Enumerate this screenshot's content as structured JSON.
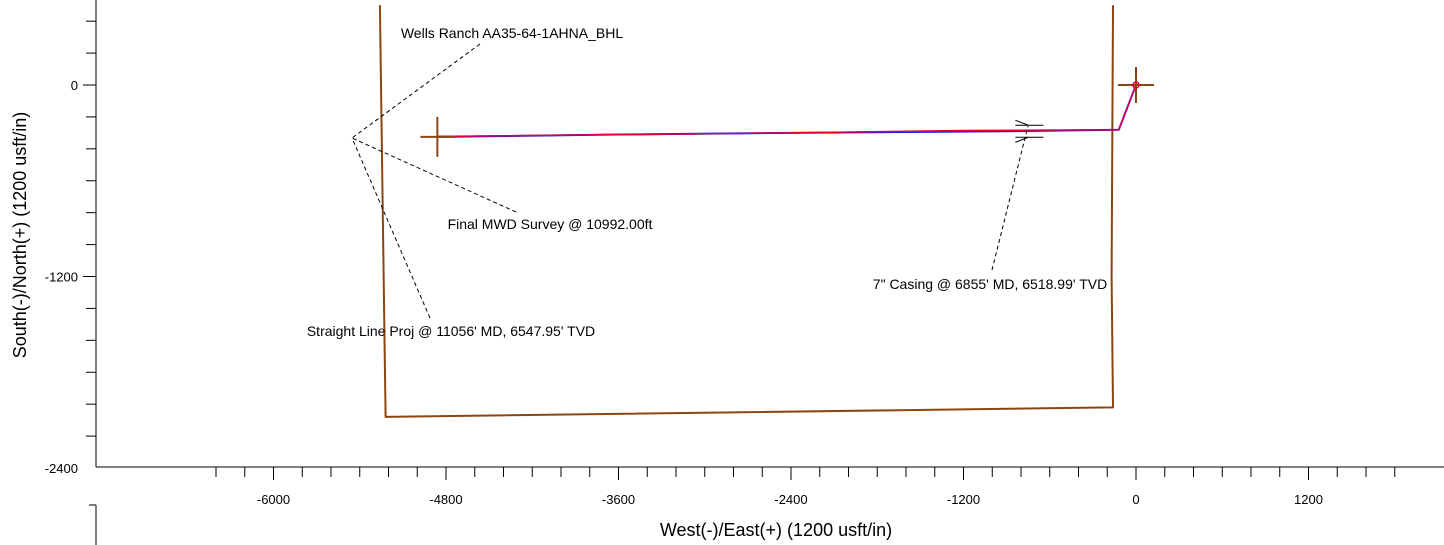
{
  "chart_data": {
    "type": "line",
    "title": "",
    "xlabel": "West(-)/East(+) (1200 usft/in)",
    "ylabel": "South(-)/North(+) (1200 usft/in)",
    "xlim": [
      -6400,
      1900
    ],
    "ylim": [
      -2400,
      500
    ],
    "x_ticks": [
      -6000,
      -4800,
      -3600,
      -2400,
      -1200,
      0,
      1200
    ],
    "y_ticks": [
      0,
      -1200,
      -2400
    ],
    "grid": false,
    "legend": "none",
    "series": [
      {
        "color": "#8B4513",
        "points": [
          [
            -5260,
            500
          ],
          [
            -5220,
            -2080
          ],
          [
            -160,
            -2020
          ],
          [
            -170,
            -1200
          ],
          [
            -160,
            500
          ]
        ]
      },
      {
        "color": "#1a1aff",
        "points": [
          [
            0,
            0
          ],
          [
            -120,
            -280
          ],
          [
            -900,
            -290
          ],
          [
            -2400,
            -300
          ],
          [
            -3600,
            -310
          ],
          [
            -4860,
            -325
          ]
        ]
      },
      {
        "color": "#e0003c",
        "points": [
          [
            0,
            0
          ],
          [
            -120,
            -280
          ],
          [
            -1200,
            -285
          ],
          [
            -2400,
            -300
          ],
          [
            -4860,
            -322
          ]
        ]
      }
    ],
    "markers": [
      {
        "name": "surface",
        "x": 0,
        "y": 0
      },
      {
        "name": "bhl",
        "x": -4860,
        "y": -325
      }
    ],
    "annotations": [
      {
        "text": "Wells Ranch AA35-64-1AHNA_BHL",
        "target": [
          -4860,
          -325
        ]
      },
      {
        "text": "Final MWD Survey @ 10992.00ft",
        "target": [
          -4860,
          -325
        ]
      },
      {
        "text": "Straight Line Proj @ 11056' MD, 6547.95' TVD",
        "target": [
          -4860,
          -325
        ]
      },
      {
        "text": "7\" Casing @ 6855' MD, 6518.99' TVD",
        "target": [
          -700,
          -290
        ]
      }
    ]
  }
}
